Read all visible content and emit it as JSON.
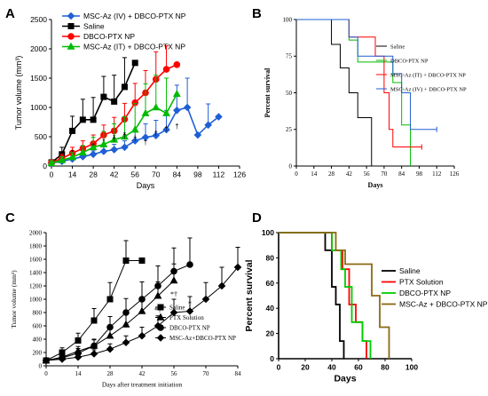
{
  "chart_data": [
    {
      "panel": "A",
      "type": "line",
      "font": "sans",
      "ylabel": "Tumor volume (mm³)",
      "xlabel": "Days",
      "xlim": [
        0,
        126
      ],
      "ylim": [
        0,
        2500
      ],
      "xticks": [
        0,
        14,
        28,
        42,
        56,
        70,
        84,
        98,
        112,
        126
      ],
      "yticks": [
        0,
        500,
        1000,
        1500,
        2000,
        2500
      ],
      "legend": "top-left",
      "series": [
        {
          "name": "MSC-Az (IV) + DBCO-PTX NP",
          "color": "#1f5fd6",
          "marker": "diamond",
          "x": [
            0,
            7,
            14,
            21,
            28,
            35,
            42,
            49,
            56,
            63,
            70,
            77,
            84,
            91,
            98,
            105,
            112
          ],
          "y": [
            50,
            80,
            120,
            160,
            200,
            250,
            280,
            320,
            430,
            490,
            520,
            620,
            950,
            1000,
            530,
            700,
            840
          ],
          "err": [
            30,
            40,
            60,
            60,
            60,
            80,
            90,
            110,
            180,
            230,
            260,
            330,
            430,
            500,
            0,
            360,
            0
          ]
        },
        {
          "name": "Saline",
          "color": "#000000",
          "marker": "square",
          "x": [
            0,
            7,
            14,
            21,
            28,
            35,
            42,
            49,
            56
          ],
          "y": [
            60,
            200,
            600,
            790,
            790,
            1180,
            1100,
            1350,
            1760
          ],
          "err": [
            50,
            120,
            250,
            350,
            380,
            350,
            450,
            500,
            0
          ]
        },
        {
          "name": "DBCO-PTX NP",
          "color": "#ff0000",
          "marker": "circle",
          "x": [
            0,
            7,
            14,
            21,
            28,
            35,
            42,
            49,
            56,
            63,
            70,
            77,
            84
          ],
          "y": [
            60,
            130,
            220,
            300,
            380,
            530,
            600,
            800,
            1080,
            1250,
            1480,
            1650,
            1730
          ],
          "err": [
            40,
            70,
            100,
            130,
            150,
            170,
            230,
            270,
            330,
            380,
            470,
            400,
            0
          ]
        },
        {
          "name": "MSC-Az (IT) + DBCO-PTX NP",
          "color": "#00bb00",
          "marker": "triangle",
          "x": [
            0,
            7,
            14,
            21,
            28,
            35,
            42,
            49,
            56,
            63,
            70,
            77,
            84
          ],
          "y": [
            50,
            100,
            150,
            230,
            320,
            370,
            450,
            500,
            620,
            900,
            1000,
            900,
            1230
          ],
          "err": [
            40,
            60,
            80,
            120,
            170,
            220,
            270,
            340,
            450,
            500,
            550,
            600,
            0
          ]
        }
      ],
      "annotations": [
        {
          "text": "*",
          "x": 14,
          "y": 190
        },
        {
          "text": "*",
          "x": 28,
          "y": 300
        },
        {
          "text": "*",
          "x": 35,
          "y": 380
        },
        {
          "text": "*",
          "x": 42,
          "y": 450
        },
        {
          "text": "*",
          "x": 49,
          "y": 490
        },
        {
          "text": "†",
          "x": 42,
          "y": 420
        },
        {
          "text": "†",
          "x": 49,
          "y": 470
        },
        {
          "text": "†",
          "x": 56,
          "y": 430
        },
        {
          "text": "†",
          "x": 63,
          "y": 360
        },
        {
          "text": "†",
          "x": 70,
          "y": 520
        },
        {
          "text": "†",
          "x": 77,
          "y": 600
        },
        {
          "text": "†",
          "x": 84,
          "y": 640
        }
      ]
    },
    {
      "panel": "B",
      "type": "line",
      "font": "serif",
      "ylabel": "Percent survival",
      "xlabel": "Days",
      "xlim": [
        0,
        126
      ],
      "ylim": [
        0,
        100
      ],
      "xticks": [
        0,
        14,
        28,
        42,
        56,
        70,
        84,
        98,
        112,
        126
      ],
      "yticks": [
        0,
        25,
        50,
        75,
        100
      ],
      "legend": "top-right",
      "series": [
        {
          "name": "Saline",
          "color": "#000000",
          "x": [
            0,
            28,
            35,
            42,
            49,
            56,
            60
          ],
          "y": [
            100,
            83,
            67,
            50,
            33,
            33,
            0
          ]
        },
        {
          "name": "DBCO-PTX NP",
          "color": "#00bb00",
          "x": [
            0,
            42,
            49,
            56,
            63,
            77,
            84,
            91
          ],
          "y": [
            100,
            86,
            71,
            71,
            71,
            57,
            28,
            0
          ]
        },
        {
          "name": "MSC-Az (IT) + DBCO-PTX NP",
          "color": "#ff0000",
          "x": [
            0,
            42,
            63,
            70,
            74,
            77,
            84,
            91,
            100
          ],
          "y": [
            100,
            88,
            75,
            50,
            25,
            13,
            13,
            13,
            13
          ]
        },
        {
          "name": "MSC-Az (IV) + DBCO-PTX NP",
          "color": "#1f5fd6",
          "x": [
            0,
            42,
            49,
            56,
            70,
            77,
            84,
            91,
            100,
            112
          ],
          "y": [
            100,
            88,
            75,
            75,
            75,
            63,
            50,
            25,
            25,
            25
          ]
        }
      ]
    },
    {
      "panel": "C",
      "type": "line",
      "font": "serif",
      "ylabel": "Tumor volume (mm³)",
      "xlabel": "Days after treatment initiation",
      "xlim": [
        0,
        84
      ],
      "ylim": [
        0,
        2000
      ],
      "xticks": [
        0,
        14,
        28,
        42,
        56,
        70,
        84
      ],
      "yticks": [
        0,
        200,
        400,
        600,
        800,
        1000,
        1200,
        1400,
        1600,
        1800,
        2000
      ],
      "legend": "bottom-right",
      "series": [
        {
          "name": "Saline",
          "color": "#000000",
          "marker": "square",
          "x": [
            0,
            7,
            14,
            21,
            28,
            35,
            42
          ],
          "y": [
            80,
            200,
            380,
            680,
            1000,
            1580,
            1580
          ],
          "err": [
            30,
            70,
            110,
            180,
            250,
            300,
            0
          ]
        },
        {
          "name": "PTX Solution",
          "color": "#000000",
          "marker": "triangle",
          "x": [
            0,
            7,
            14,
            21,
            28,
            35,
            42,
            49,
            56
          ],
          "y": [
            80,
            130,
            220,
            300,
            450,
            620,
            820,
            1050,
            1280
          ],
          "err": [
            30,
            50,
            70,
            90,
            120,
            150,
            180,
            210,
            250
          ]
        },
        {
          "name": "DBCO-PTX NP",
          "color": "#000000",
          "marker": "circle",
          "x": [
            0,
            7,
            14,
            21,
            28,
            35,
            42,
            49,
            56,
            63
          ],
          "y": [
            80,
            120,
            190,
            300,
            580,
            800,
            1000,
            1200,
            1420,
            1520
          ],
          "err": [
            30,
            50,
            70,
            100,
            160,
            210,
            260,
            300,
            350,
            400
          ]
        },
        {
          "name": "MSC-Az+DBCO-PTX NP",
          "color": "#000000",
          "marker": "diamond",
          "x": [
            0,
            7,
            14,
            21,
            28,
            35,
            42,
            49,
            56,
            63,
            70,
            77,
            84
          ],
          "y": [
            80,
            100,
            130,
            180,
            250,
            350,
            450,
            600,
            800,
            820,
            1000,
            1200,
            1480
          ],
          "err": [
            20,
            30,
            40,
            60,
            80,
            100,
            130,
            150,
            200,
            220,
            250,
            280,
            300
          ]
        }
      ],
      "annotations": [
        {
          "text": "*",
          "x": 35,
          "y": 540
        },
        {
          "text": "*†",
          "x": 49,
          "y": 800
        },
        {
          "text": "*†",
          "x": 56,
          "y": 1040
        },
        {
          "text": "*",
          "x": 63,
          "y": 900
        }
      ]
    },
    {
      "panel": "D",
      "type": "line",
      "font": "sans",
      "ylabel": "Percent survival",
      "xlabel": "Days",
      "xlim": [
        0,
        100
      ],
      "ylim": [
        0,
        100
      ],
      "xticks": [
        0,
        20,
        40,
        60,
        80,
        100
      ],
      "yticks": [
        0,
        20,
        40,
        60,
        80,
        100
      ],
      "legend": "right",
      "series": [
        {
          "name": "Saline",
          "color": "#000000",
          "x": [
            0,
            35,
            40,
            43,
            46,
            49
          ],
          "y": [
            100,
            86,
            57,
            43,
            14,
            0
          ]
        },
        {
          "name": "PTX Solution",
          "color": "#ff0000",
          "x": [
            0,
            40,
            48,
            53,
            58,
            63,
            66
          ],
          "y": [
            100,
            86,
            71,
            43,
            29,
            14,
            0
          ]
        },
        {
          "name": "DBCO-PTX NP",
          "color": "#00cc00",
          "x": [
            0,
            40,
            47,
            50,
            55,
            63,
            69
          ],
          "y": [
            100,
            86,
            71,
            57,
            29,
            14,
            0
          ]
        },
        {
          "name": "MSC-Az + DBCO-PTX NP",
          "color": "#8b6914",
          "x": [
            0,
            43,
            50,
            61,
            70,
            76,
            83
          ],
          "y": [
            100,
            86,
            75,
            75,
            50,
            25,
            0
          ]
        }
      ]
    }
  ]
}
